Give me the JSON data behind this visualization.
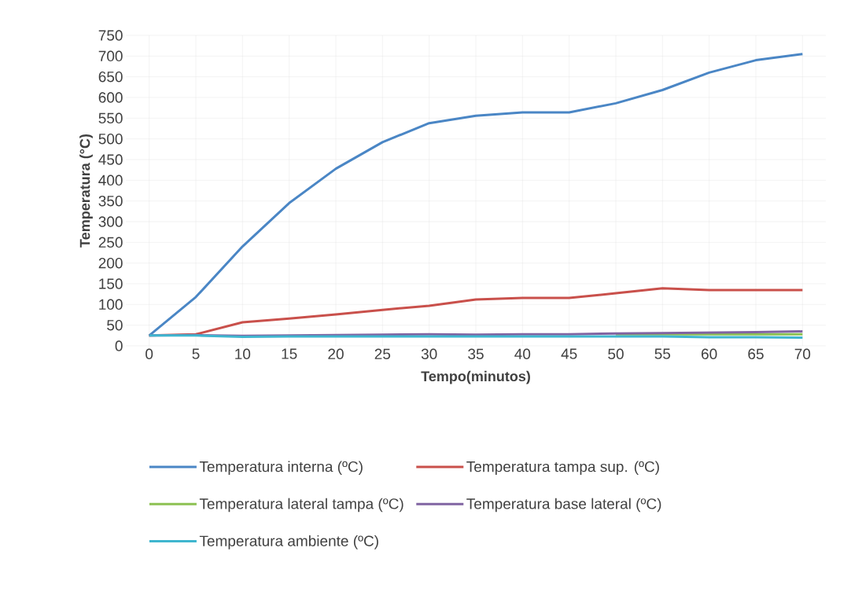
{
  "chart_data": {
    "type": "line",
    "xlabel": "Tempo(minutos)",
    "ylabel": "Temperatura (°C)",
    "categories": [
      "0",
      "5",
      "10",
      "15",
      "20",
      "25",
      "30",
      "35",
      "40",
      "45",
      "50",
      "55",
      "60",
      "65",
      "70"
    ],
    "series": [
      {
        "name": "Temperatura interna (ºC)",
        "color": "#4a86c5",
        "values": [
          25,
          118,
          240,
          345,
          428,
          492,
          538,
          556,
          564,
          564,
          586,
          618,
          660,
          690,
          705
        ]
      },
      {
        "name": "Temperatura tampa sup. (ºC)",
        "color": "#c9504b",
        "values": [
          25,
          28,
          57,
          66,
          76,
          87,
          97,
          112,
          116,
          116,
          127,
          139,
          135,
          135,
          135
        ]
      },
      {
        "name": "Temperatura lateral tampa (ºC)",
        "color": "#8cc152",
        "values": [
          null,
          null,
          null,
          null,
          null,
          null,
          null,
          null,
          null,
          null,
          28,
          28,
          28,
          28,
          28
        ]
      },
      {
        "name": "Temperatura base lateral (ºC)",
        "color": "#8064a2",
        "values": [
          25,
          26,
          24,
          25,
          26,
          27,
          28,
          27,
          28,
          28,
          30,
          31,
          32,
          33,
          35
        ]
      },
      {
        "name": "Temperatura ambiente (ºC)",
        "color": "#3fb6cf",
        "values": [
          25,
          25,
          22,
          23,
          23,
          23,
          23,
          23,
          23,
          23,
          23,
          23,
          21,
          21,
          20
        ]
      }
    ],
    "ylim": [
      0,
      750
    ],
    "yticks": [
      0,
      50,
      100,
      150,
      200,
      250,
      300,
      350,
      400,
      450,
      500,
      550,
      600,
      650,
      700,
      750
    ],
    "grid": true,
    "legend": "bottom",
    "marker": "none",
    "line_style": "solid"
  }
}
